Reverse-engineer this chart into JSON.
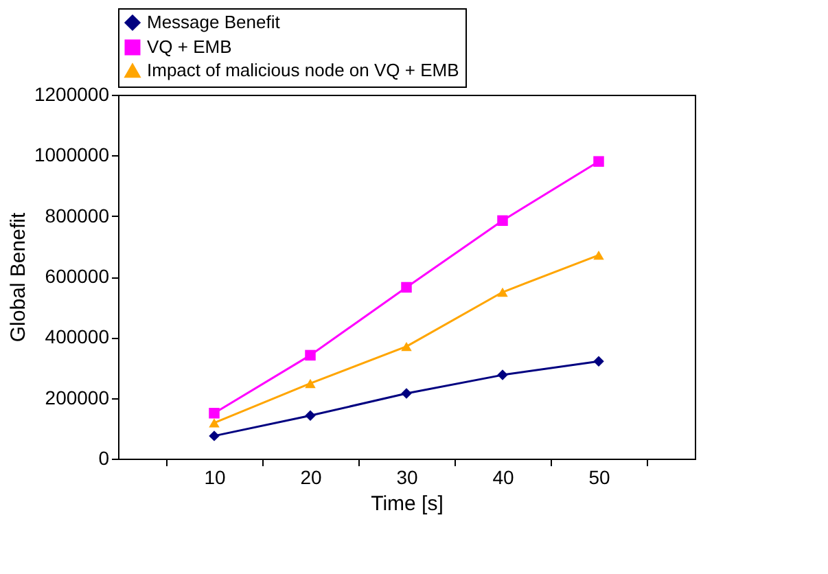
{
  "chart_data": {
    "type": "line",
    "xlabel": "Time [s]",
    "ylabel": "Global Benefit",
    "categories": [
      "10",
      "20",
      "30",
      "40",
      "50"
    ],
    "series": [
      {
        "name": "Message Benefit",
        "color": "#000080",
        "marker": "diamond",
        "values": [
          75000,
          142000,
          215000,
          276000,
          321000
        ]
      },
      {
        "name": "VQ + EMB",
        "color": "#ff00ff",
        "marker": "square",
        "values": [
          150000,
          341000,
          565000,
          785000,
          980000
        ]
      },
      {
        "name": "Impact of malicious node on VQ + EMB",
        "color": "#ffa500",
        "marker": "triangle",
        "values": [
          118000,
          248000,
          370000,
          549000,
          671000
        ]
      }
    ],
    "ylim": [
      0,
      1200000
    ],
    "yticks": [
      0,
      200000,
      400000,
      600000,
      800000,
      1000000,
      1200000
    ],
    "grid": false,
    "legend": "top"
  }
}
